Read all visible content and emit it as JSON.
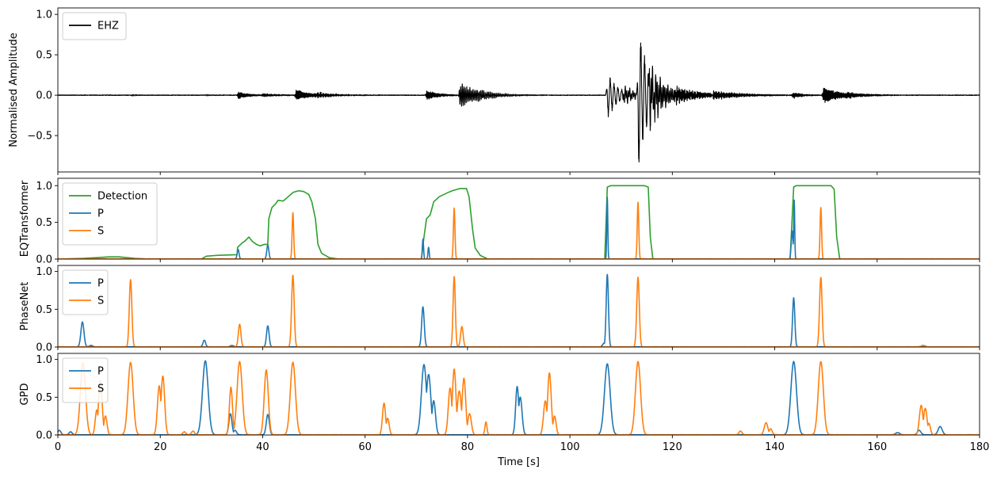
{
  "chart_data": [
    {
      "type": "line",
      "panel": "waveform",
      "title": "",
      "xlabel": "",
      "ylabel": "Normalised Amplitude",
      "xlim": [
        0,
        180
      ],
      "ylim": [
        -0.95,
        1.08
      ],
      "yticks": [
        -0.5,
        0.0,
        0.5,
        1.0
      ],
      "ytick_labels": [
        "−0.5",
        "0.0",
        "0.5",
        "1.0"
      ],
      "legend": "upper-left",
      "grid": false,
      "series": [
        {
          "name": "EHZ",
          "color": "#000000",
          "kind": "waveform",
          "bursts": [
            {
              "t": 14.5,
              "amp": 0.01,
              "dur": 1.0,
              "f": 1.5
            },
            {
              "t": 29.0,
              "amp": 0.01,
              "dur": 1.0,
              "f": 1.5
            },
            {
              "t": 35.2,
              "amp": 0.05,
              "dur": 2.0,
              "f": 1.4
            },
            {
              "t": 40.0,
              "amp": 0.02,
              "dur": 3.0,
              "f": 1.2
            },
            {
              "t": 46.5,
              "amp": 0.07,
              "dur": 3.0,
              "f": 1.4
            },
            {
              "t": 50.5,
              "amp": 0.03,
              "dur": 4.0,
              "f": 1.3
            },
            {
              "t": 72.0,
              "amp": 0.06,
              "dur": 2.5,
              "f": 1.4
            },
            {
              "t": 78.5,
              "amp": 0.17,
              "dur": 3.5,
              "f": 1.5
            },
            {
              "t": 82.0,
              "amp": 0.04,
              "dur": 4.0,
              "f": 1.3
            },
            {
              "t": 107.3,
              "amp": 0.3,
              "dur": 2.2,
              "f": 1.6
            },
            {
              "t": 110.5,
              "amp": 0.1,
              "dur": 2.5,
              "f": 1.5
            },
            {
              "t": 113.4,
              "amp": 1.0,
              "dur": 1.8,
              "f": 1.6
            },
            {
              "t": 115.5,
              "amp": 0.36,
              "dur": 3.0,
              "f": 1.5
            },
            {
              "t": 120.5,
              "amp": 0.1,
              "dur": 5.0,
              "f": 1.4
            },
            {
              "t": 128.0,
              "amp": 0.05,
              "dur": 6.0,
              "f": 1.3
            },
            {
              "t": 143.5,
              "amp": 0.04,
              "dur": 2.0,
              "f": 1.4
            },
            {
              "t": 149.5,
              "amp": 0.1,
              "dur": 3.5,
              "f": 1.4
            },
            {
              "t": 154.0,
              "amp": 0.03,
              "dur": 4.0,
              "f": 1.2
            }
          ]
        }
      ]
    },
    {
      "type": "line",
      "panel": "eqtransformer",
      "title": "",
      "xlabel": "",
      "ylabel": "EQTransformer",
      "xlim": [
        0,
        180
      ],
      "ylim": [
        0,
        1.1
      ],
      "yticks": [
        0.0,
        0.5,
        1.0
      ],
      "ytick_labels": [
        "0.0",
        "0.5",
        "1.0"
      ],
      "legend": "upper-left",
      "grid": false,
      "series": [
        {
          "name": "Detection",
          "color": "#2ca02c",
          "points": [
            [
              0,
              0
            ],
            [
              5,
              0.01
            ],
            [
              10,
              0.03
            ],
            [
              12,
              0.03
            ],
            [
              15,
              0.01
            ],
            [
              18,
              0.0
            ],
            [
              28,
              0.0
            ],
            [
              29,
              0.04
            ],
            [
              31,
              0.05
            ],
            [
              35,
              0.06
            ],
            [
              35.1,
              0.16
            ],
            [
              36,
              0.22
            ],
            [
              36.6,
              0.25
            ],
            [
              37.3,
              0.3
            ],
            [
              38,
              0.24
            ],
            [
              38.8,
              0.2
            ],
            [
              39.5,
              0.18
            ],
            [
              40.3,
              0.2
            ],
            [
              41,
              0.2
            ],
            [
              41.2,
              0.55
            ],
            [
              41.8,
              0.7
            ],
            [
              42.5,
              0.75
            ],
            [
              43,
              0.8
            ],
            [
              44,
              0.79
            ],
            [
              45,
              0.85
            ],
            [
              46,
              0.91
            ],
            [
              47,
              0.93
            ],
            [
              48,
              0.92
            ],
            [
              49,
              0.88
            ],
            [
              49.6,
              0.78
            ],
            [
              50.3,
              0.55
            ],
            [
              50.8,
              0.2
            ],
            [
              51.5,
              0.08
            ],
            [
              53,
              0.02
            ],
            [
              55,
              0.0
            ],
            [
              71,
              0.0
            ],
            [
              71.5,
              0.3
            ],
            [
              72,
              0.55
            ],
            [
              72.7,
              0.6
            ],
            [
              73.4,
              0.78
            ],
            [
              74.5,
              0.85
            ],
            [
              76,
              0.9
            ],
            [
              77,
              0.93
            ],
            [
              78.5,
              0.96
            ],
            [
              79.8,
              0.96
            ],
            [
              80.3,
              0.85
            ],
            [
              81,
              0.4
            ],
            [
              81.5,
              0.15
            ],
            [
              82.5,
              0.05
            ],
            [
              84,
              0.0
            ],
            [
              106.8,
              0.0
            ],
            [
              107.3,
              0.98
            ],
            [
              108,
              1.0
            ],
            [
              114.5,
              1.0
            ],
            [
              115.3,
              0.98
            ],
            [
              115.7,
              0.3
            ],
            [
              116.2,
              0.0
            ],
            [
              143,
              0.0
            ],
            [
              143.7,
              0.98
            ],
            [
              144.2,
              1.0
            ],
            [
              151,
              1.0
            ],
            [
              151.6,
              0.95
            ],
            [
              152.1,
              0.3
            ],
            [
              152.7,
              0.0
            ],
            [
              180,
              0.0
            ]
          ]
        },
        {
          "name": "P",
          "color": "#1f77b4",
          "peaks": [
            {
              "t": 35.2,
              "h": 0.13,
              "w": 0.18
            },
            {
              "t": 41.0,
              "h": 0.19,
              "w": 0.2
            },
            {
              "t": 71.3,
              "h": 0.27,
              "w": 0.12
            },
            {
              "t": 72.4,
              "h": 0.16,
              "w": 0.12
            },
            {
              "t": 107.3,
              "h": 0.84,
              "w": 0.1
            },
            {
              "t": 143.4,
              "h": 0.38,
              "w": 0.18
            },
            {
              "t": 143.8,
              "h": 0.8,
              "w": 0.1
            }
          ]
        },
        {
          "name": "S",
          "color": "#ff7f0e",
          "peaks": [
            {
              "t": 45.9,
              "h": 0.63,
              "w": 0.15
            },
            {
              "t": 77.4,
              "h": 0.69,
              "w": 0.15
            },
            {
              "t": 113.3,
              "h": 0.77,
              "w": 0.15
            },
            {
              "t": 149.0,
              "h": 0.7,
              "w": 0.15
            }
          ]
        }
      ]
    },
    {
      "type": "line",
      "panel": "phasenet",
      "title": "",
      "xlabel": "",
      "ylabel": "PhaseNet",
      "xlim": [
        0,
        180
      ],
      "ylim": [
        0,
        1.08
      ],
      "yticks": [
        0.0,
        0.5,
        1.0
      ],
      "ytick_labels": [
        "0.0",
        "0.5",
        "1.0"
      ],
      "legend": "upper-left",
      "grid": false,
      "series": [
        {
          "name": "P",
          "color": "#1f77b4",
          "peaks": [
            {
              "t": 4.8,
              "h": 0.33,
              "w": 0.3
            },
            {
              "t": 6.5,
              "h": 0.02,
              "w": 0.3
            },
            {
              "t": 28.6,
              "h": 0.09,
              "w": 0.25
            },
            {
              "t": 34.0,
              "h": 0.02,
              "w": 0.3
            },
            {
              "t": 41.0,
              "h": 0.28,
              "w": 0.25
            },
            {
              "t": 71.3,
              "h": 0.53,
              "w": 0.25
            },
            {
              "t": 106.7,
              "h": 0.05,
              "w": 0.3
            },
            {
              "t": 107.3,
              "h": 0.96,
              "w": 0.22
            },
            {
              "t": 143.7,
              "h": 0.65,
              "w": 0.22
            }
          ]
        },
        {
          "name": "S",
          "color": "#ff7f0e",
          "peaks": [
            {
              "t": 14.2,
              "h": 0.89,
              "w": 0.25
            },
            {
              "t": 35.5,
              "h": 0.3,
              "w": 0.25
            },
            {
              "t": 45.9,
              "h": 0.95,
              "w": 0.25
            },
            {
              "t": 77.4,
              "h": 0.93,
              "w": 0.22
            },
            {
              "t": 78.9,
              "h": 0.27,
              "w": 0.25
            },
            {
              "t": 113.3,
              "h": 0.92,
              "w": 0.25
            },
            {
              "t": 149.0,
              "h": 0.92,
              "w": 0.25
            },
            {
              "t": 169.0,
              "h": 0.02,
              "w": 0.4
            }
          ]
        }
      ]
    },
    {
      "type": "line",
      "panel": "gpd",
      "title": "",
      "xlabel": "Time [s]",
      "ylabel": "GPD",
      "xlim": [
        0,
        180
      ],
      "ylim": [
        0,
        1.08
      ],
      "yticks": [
        0.0,
        0.5,
        1.0
      ],
      "ytick_labels": [
        "0.0",
        "0.5",
        "1.0"
      ],
      "xticks": [
        0,
        20,
        40,
        60,
        80,
        100,
        120,
        140,
        160,
        180
      ],
      "xtick_labels": [
        "0",
        "20",
        "40",
        "60",
        "80",
        "100",
        "120",
        "140",
        "160",
        "180"
      ],
      "legend": "upper-left",
      "grid": false,
      "series": [
        {
          "name": "P",
          "color": "#1f77b4",
          "peaks": [
            {
              "t": 0.3,
              "h": 0.06,
              "w": 0.3
            },
            {
              "t": 2.5,
              "h": 0.04,
              "w": 0.3
            },
            {
              "t": 28.8,
              "h": 0.98,
              "w": 0.55
            },
            {
              "t": 33.7,
              "h": 0.28,
              "w": 0.3
            },
            {
              "t": 34.6,
              "h": 0.06,
              "w": 0.3
            },
            {
              "t": 41.0,
              "h": 0.27,
              "w": 0.3
            },
            {
              "t": 71.5,
              "h": 0.93,
              "w": 0.5
            },
            {
              "t": 72.4,
              "h": 0.8,
              "w": 0.45
            },
            {
              "t": 73.4,
              "h": 0.45,
              "w": 0.35
            },
            {
              "t": 89.7,
              "h": 0.64,
              "w": 0.3
            },
            {
              "t": 90.3,
              "h": 0.5,
              "w": 0.35
            },
            {
              "t": 107.3,
              "h": 0.94,
              "w": 0.55
            },
            {
              "t": 143.7,
              "h": 0.97,
              "w": 0.55
            },
            {
              "t": 164.0,
              "h": 0.03,
              "w": 0.4
            },
            {
              "t": 168.2,
              "h": 0.06,
              "w": 0.35
            },
            {
              "t": 172.3,
              "h": 0.11,
              "w": 0.4
            }
          ]
        },
        {
          "name": "S",
          "color": "#ff7f0e",
          "peaks": [
            {
              "t": 4.9,
              "h": 0.95,
              "w": 0.5
            },
            {
              "t": 7.6,
              "h": 0.33,
              "w": 0.3
            },
            {
              "t": 8.3,
              "h": 0.72,
              "w": 0.35
            },
            {
              "t": 9.3,
              "h": 0.25,
              "w": 0.3
            },
            {
              "t": 14.2,
              "h": 0.96,
              "w": 0.5
            },
            {
              "t": 19.8,
              "h": 0.65,
              "w": 0.35
            },
            {
              "t": 20.5,
              "h": 0.78,
              "w": 0.35
            },
            {
              "t": 24.7,
              "h": 0.04,
              "w": 0.3
            },
            {
              "t": 26.4,
              "h": 0.05,
              "w": 0.3
            },
            {
              "t": 33.8,
              "h": 0.63,
              "w": 0.3
            },
            {
              "t": 35.5,
              "h": 0.97,
              "w": 0.5
            },
            {
              "t": 40.7,
              "h": 0.86,
              "w": 0.4
            },
            {
              "t": 45.9,
              "h": 0.96,
              "w": 0.5
            },
            {
              "t": 63.7,
              "h": 0.42,
              "w": 0.3
            },
            {
              "t": 64.4,
              "h": 0.22,
              "w": 0.3
            },
            {
              "t": 76.6,
              "h": 0.62,
              "w": 0.35
            },
            {
              "t": 77.4,
              "h": 0.87,
              "w": 0.35
            },
            {
              "t": 78.4,
              "h": 0.58,
              "w": 0.4
            },
            {
              "t": 79.3,
              "h": 0.75,
              "w": 0.35
            },
            {
              "t": 80.4,
              "h": 0.28,
              "w": 0.35
            },
            {
              "t": 83.6,
              "h": 0.17,
              "w": 0.2
            },
            {
              "t": 95.2,
              "h": 0.45,
              "w": 0.35
            },
            {
              "t": 96.0,
              "h": 0.82,
              "w": 0.35
            },
            {
              "t": 97.0,
              "h": 0.25,
              "w": 0.3
            },
            {
              "t": 113.3,
              "h": 0.97,
              "w": 0.5
            },
            {
              "t": 133.3,
              "h": 0.05,
              "w": 0.3
            },
            {
              "t": 138.3,
              "h": 0.16,
              "w": 0.35
            },
            {
              "t": 139.2,
              "h": 0.08,
              "w": 0.3
            },
            {
              "t": 149.0,
              "h": 0.97,
              "w": 0.5
            },
            {
              "t": 168.6,
              "h": 0.39,
              "w": 0.35
            },
            {
              "t": 169.4,
              "h": 0.35,
              "w": 0.35
            },
            {
              "t": 170.1,
              "h": 0.15,
              "w": 0.3
            }
          ]
        }
      ]
    }
  ]
}
